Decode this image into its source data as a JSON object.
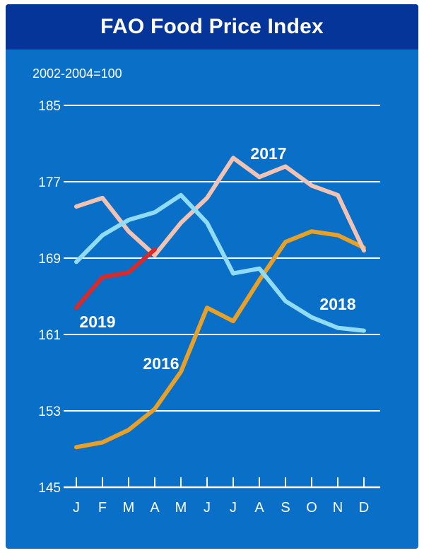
{
  "chart_data": {
    "type": "line",
    "title": "FAO Food Price Index",
    "unit_note": "2002-2004=100",
    "categories": [
      "J",
      "F",
      "M",
      "A",
      "M",
      "J",
      "J",
      "A",
      "S",
      "O",
      "N",
      "D"
    ],
    "ylim": [
      145,
      185
    ],
    "yticks": [
      145,
      153,
      161,
      169,
      177,
      185
    ],
    "grid": true,
    "series": [
      {
        "name": "2016",
        "color": "#e8a026",
        "values": [
          149.2,
          149.7,
          151.0,
          153.2,
          157.1,
          163.8,
          162.4,
          166.7,
          170.7,
          171.8,
          171.4,
          170.1
        ]
      },
      {
        "name": "2017",
        "color": "#f2c3b2",
        "values": [
          174.4,
          175.3,
          171.8,
          169.3,
          172.7,
          175.3,
          179.5,
          177.5,
          178.6,
          176.6,
          175.6,
          169.8
        ]
      },
      {
        "name": "2018",
        "color": "#8fdcf4",
        "values": [
          168.6,
          171.4,
          173.0,
          173.8,
          175.6,
          172.7,
          167.4,
          167.9,
          164.5,
          162.8,
          161.7,
          161.4
        ]
      },
      {
        "name": "2019",
        "color": "#d92a2a",
        "values": [
          163.8,
          167.0,
          167.5,
          169.9,
          null,
          null,
          null,
          null,
          null,
          null,
          null,
          null
        ]
      }
    ]
  }
}
